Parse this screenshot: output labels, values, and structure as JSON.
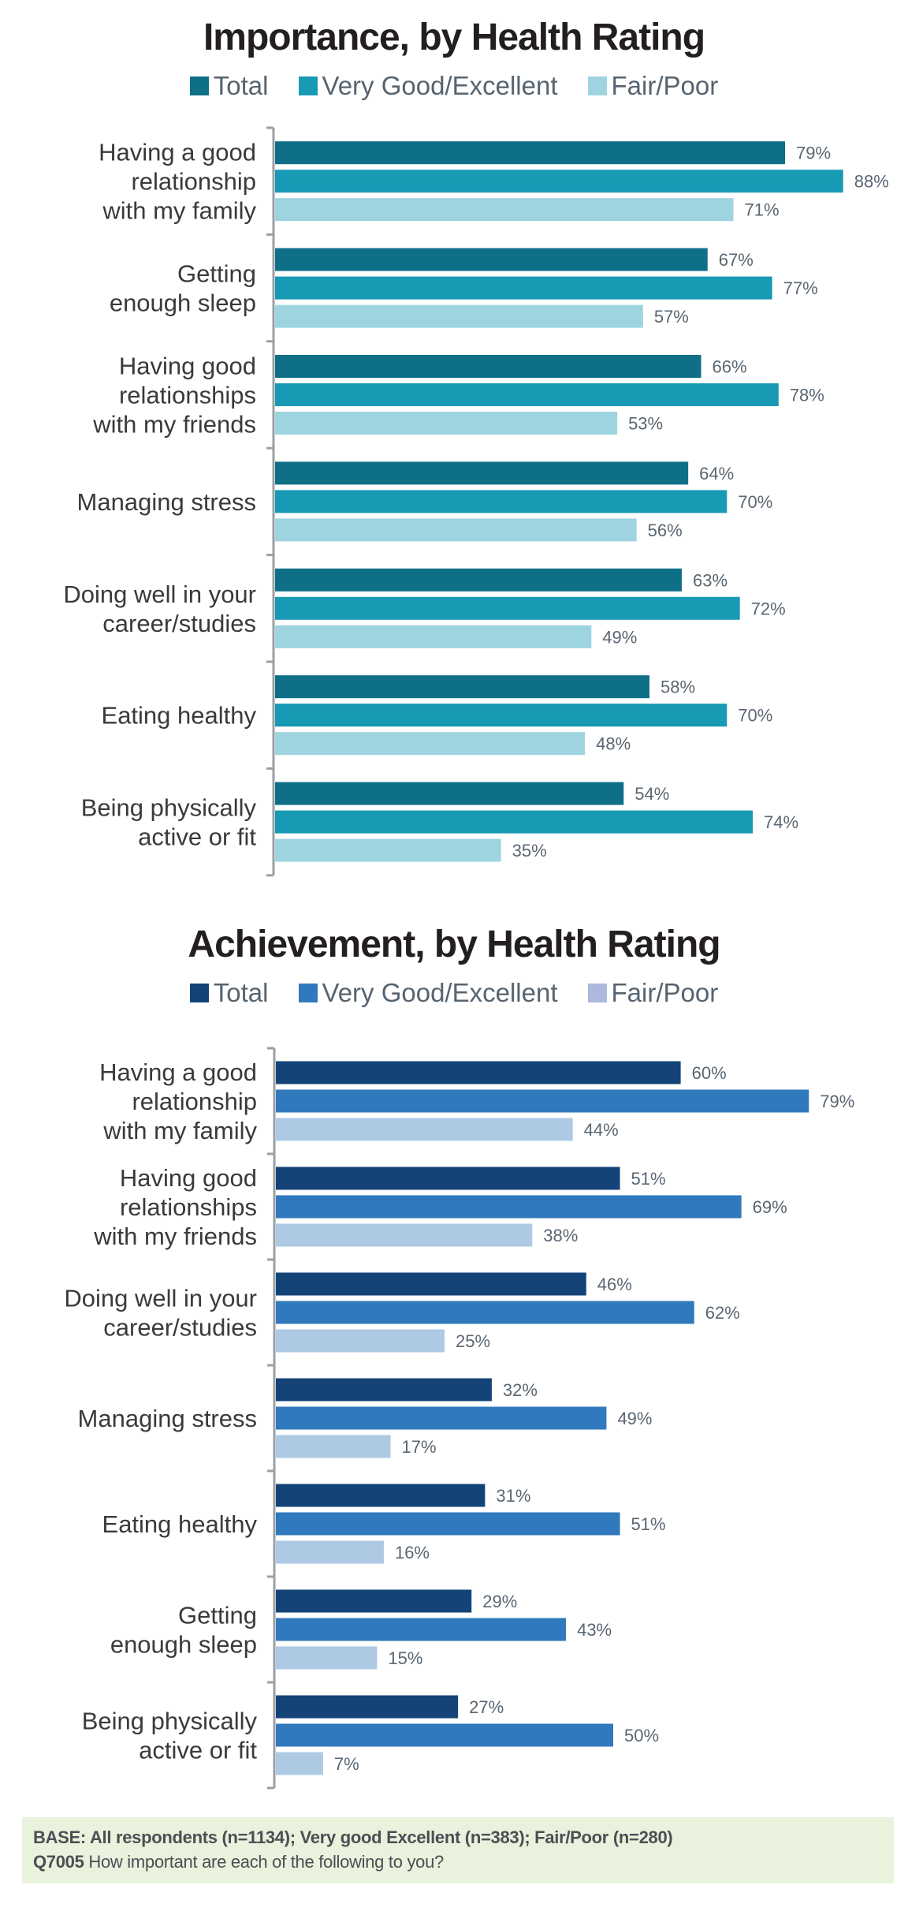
{
  "chart_data": [
    {
      "type": "bar",
      "orientation": "horizontal",
      "title": "Importance, by Health Rating",
      "categories": [
        "Having a good relationship with my family",
        "Getting enough sleep",
        "Having good relationships with my friends",
        "Managing stress",
        "Doing well in your career/studies",
        "Eating healthy",
        "Being physically active or fit"
      ],
      "category_lines": [
        [
          "Having a good",
          "relationship",
          "with my family"
        ],
        [
          "Getting",
          "enough sleep"
        ],
        [
          "Having good",
          "relationships",
          "with my friends"
        ],
        [
          "Managing stress"
        ],
        [
          "Doing well in your",
          "career/studies"
        ],
        [
          "Eating healthy"
        ],
        [
          "Being physically",
          "active or fit"
        ]
      ],
      "series": [
        {
          "name": "Total",
          "color": "#0f6f87",
          "values": [
            79,
            67,
            66,
            64,
            63,
            58,
            54
          ]
        },
        {
          "name": "Very Good/Excellent",
          "color": "#1899b4",
          "values": [
            88,
            77,
            78,
            70,
            72,
            70,
            74
          ]
        },
        {
          "name": "Fair/Poor",
          "color": "#9dd4df",
          "values": [
            71,
            57,
            53,
            56,
            49,
            48,
            35
          ]
        }
      ],
      "value_suffix": "%",
      "xlabel": "",
      "ylabel": "",
      "xlim": [
        0,
        100
      ],
      "grid": false,
      "legend_position": "top"
    },
    {
      "type": "bar",
      "orientation": "horizontal",
      "title": "Achievement, by Health Rating",
      "categories": [
        "Having a good relationship with my family",
        "Having good relationships with my friends",
        "Doing well in your career/studies",
        "Managing stress",
        "Eating healthy",
        "Getting enough sleep",
        "Being physically active or fit"
      ],
      "category_lines": [
        [
          "Having a good",
          "relationship",
          "with my family"
        ],
        [
          "Having good",
          "relationships",
          "with my friends"
        ],
        [
          "Doing well in your",
          "career/studies"
        ],
        [
          "Managing stress"
        ],
        [
          "Eating healthy"
        ],
        [
          "Getting",
          "enough sleep"
        ],
        [
          "Being physically",
          "active or fit"
        ]
      ],
      "series": [
        {
          "name": "Total",
          "color": "#134377",
          "values": [
            60,
            51,
            46,
            32,
            31,
            29,
            27
          ]
        },
        {
          "name": "Very Good/Excellent",
          "color": "#3079bd",
          "values": [
            79,
            69,
            62,
            49,
            51,
            43,
            50
          ]
        },
        {
          "name": "Fair/Poor",
          "color": "#adc9e4",
          "values": [
            44,
            38,
            25,
            17,
            16,
            15,
            7
          ]
        }
      ],
      "legend_colors": [
        "#134377",
        "#3079bd",
        "#aab9dd"
      ],
      "value_suffix": "%",
      "xlabel": "",
      "ylabel": "",
      "xlim": [
        0,
        100
      ],
      "grid": false,
      "legend_position": "top"
    }
  ],
  "footer": {
    "base_label": "BASE: All respondents (n=1134); Very good Excellent (n=383); Fair/Poor (n=280)",
    "question_code": "Q7005",
    "question_text": " How important are each of the following to you?"
  }
}
